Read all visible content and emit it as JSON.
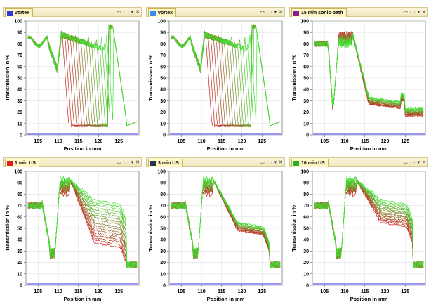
{
  "panels": [
    {
      "title": "vortex",
      "swatch": "#3636d6",
      "profile": "vortex"
    },
    {
      "title": "vortex",
      "swatch": "#3a8ef0",
      "profile": "vortex"
    },
    {
      "title": "15 min sonic-bath",
      "swatch": "#8a1e8c",
      "profile": "sonic"
    },
    {
      "title": "1 min US",
      "swatch": "#e02020",
      "profile": "us1"
    },
    {
      "title": "3 min US",
      "swatch": "#243452",
      "profile": "us3"
    },
    {
      "title": "10 min US",
      "swatch": "#22b422",
      "profile": "us10"
    }
  ],
  "controls": {
    "window_icon": "window-restore-icon",
    "prev_icon": "chevron-left-icon",
    "next_icon": "chevron-right-icon",
    "menu_icon": "dropdown-menu-icon",
    "close_icon": "close-icon"
  },
  "axes": {
    "ylabel": "Transmission in %",
    "xlabel": "Position in mm",
    "yticks": [
      "0",
      "10",
      "20",
      "30",
      "40",
      "50",
      "60",
      "70",
      "80",
      "90",
      "100"
    ],
    "xticks": [
      "105",
      "110",
      "115",
      "120",
      "125"
    ],
    "xlim": [
      102,
      130
    ],
    "ylim": [
      0,
      100
    ]
  },
  "colors": {
    "early": "#c81e1e",
    "late": "#3ce632",
    "baseline": "#5a5ae6"
  }
}
